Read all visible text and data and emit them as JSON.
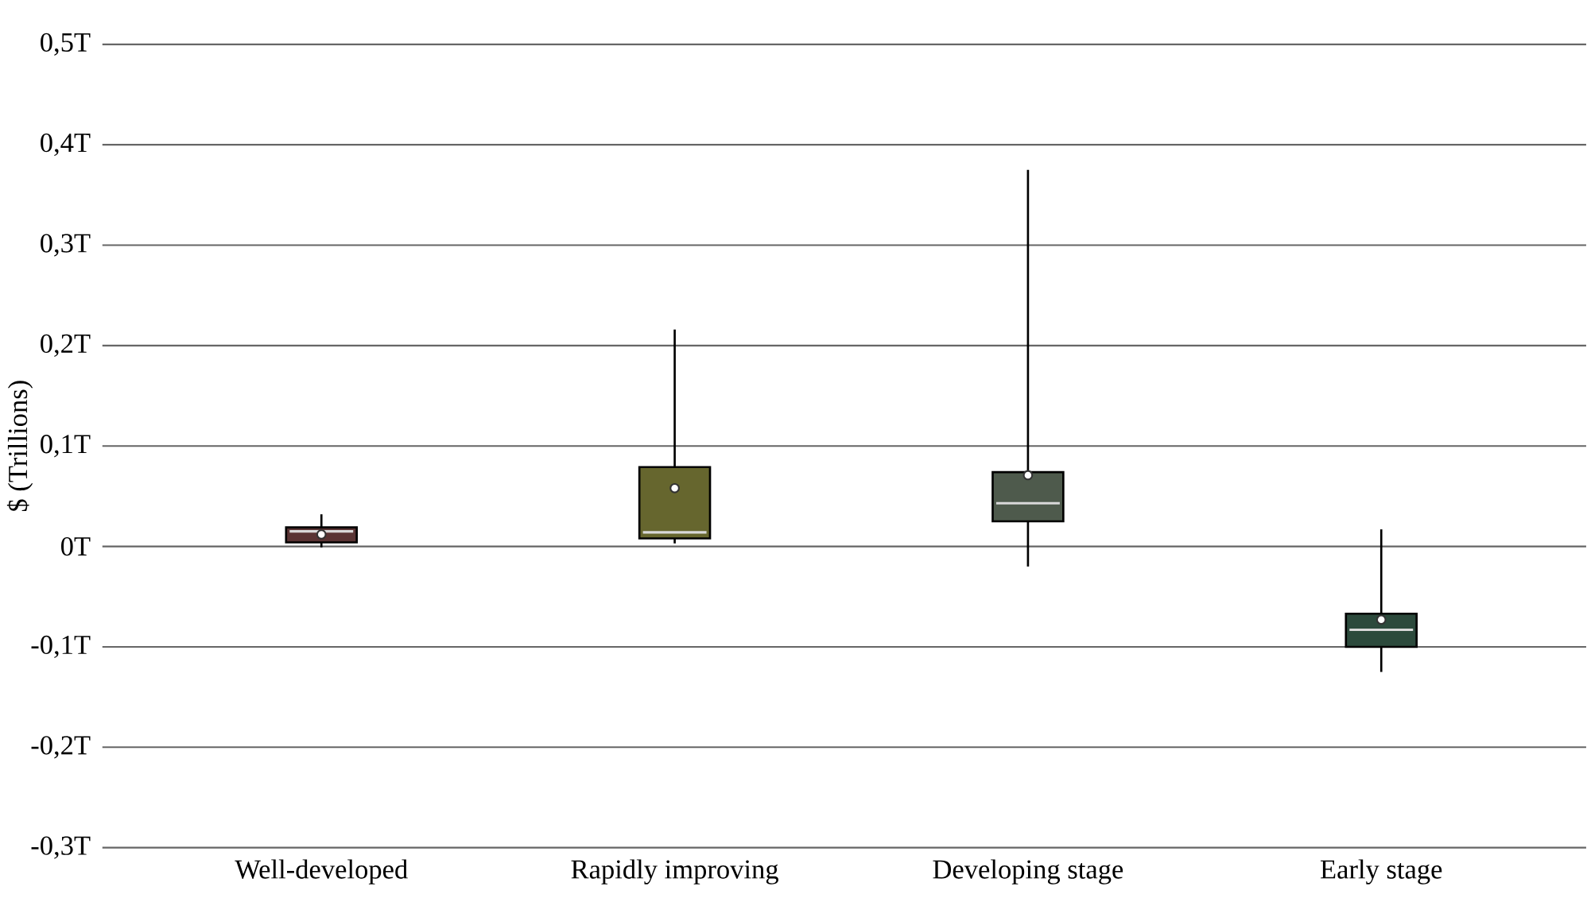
{
  "chart_data": {
    "type": "box",
    "ylabel": "$ (Trillions)",
    "categories": [
      "Well-developed",
      "Rapidly improving",
      "Developing stage",
      "Early stage"
    ],
    "colors": [
      "#5a3434",
      "#66662e",
      "#4e5a4c",
      "#2c4a3c"
    ],
    "boxes": [
      {
        "low": -0.001,
        "q1": 0.004,
        "median": 0.015,
        "q3": 0.019,
        "high": 0.032,
        "mean": 0.012
      },
      {
        "low": 0.003,
        "q1": 0.008,
        "median": 0.014,
        "q3": 0.079,
        "high": 0.216,
        "mean": 0.058
      },
      {
        "low": -0.02,
        "q1": 0.025,
        "median": 0.043,
        "q3": 0.074,
        "high": 0.375,
        "mean": 0.071
      },
      {
        "low": -0.125,
        "q1": -0.1,
        "median": -0.083,
        "q3": -0.067,
        "high": 0.017,
        "mean": -0.073
      }
    ],
    "ylim": [
      -0.3,
      0.5
    ],
    "yticks": [
      {
        "value": -0.3,
        "label": "-0,3T"
      },
      {
        "value": -0.2,
        "label": "-0,2T"
      },
      {
        "value": -0.1,
        "label": "-0,1T"
      },
      {
        "value": 0,
        "label": "0T"
      },
      {
        "value": 0.1,
        "label": "0,1T"
      },
      {
        "value": 0.2,
        "label": "0,2T"
      },
      {
        "value": 0.3,
        "label": "0,3T"
      },
      {
        "value": 0.4,
        "label": "0,4T"
      },
      {
        "value": 0.5,
        "label": "0,5T"
      }
    ],
    "grid": "y"
  }
}
